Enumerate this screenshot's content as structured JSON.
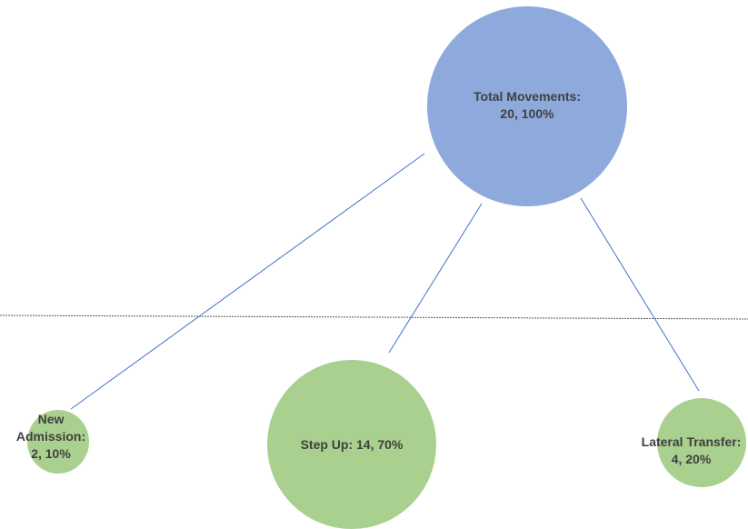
{
  "colors": {
    "root_fill": "#8eaadc",
    "child_fill": "#a9d08e",
    "connector": "#4472c4",
    "divider": "#595959",
    "label_text": "#404040"
  },
  "root": {
    "name": "Total Movements:",
    "value_text": "20, 100%",
    "count": 20,
    "percent": 100
  },
  "children": [
    {
      "name_line1": "New",
      "name_line2": "Admission:",
      "value_text": "2, 10%",
      "count": 2,
      "percent": 10
    },
    {
      "name": "Step Up: 14, 70%",
      "count": 14,
      "percent": 70
    },
    {
      "name": "Lateral Transfer:",
      "value_text": "4, 20%",
      "count": 4,
      "percent": 20
    }
  ]
}
